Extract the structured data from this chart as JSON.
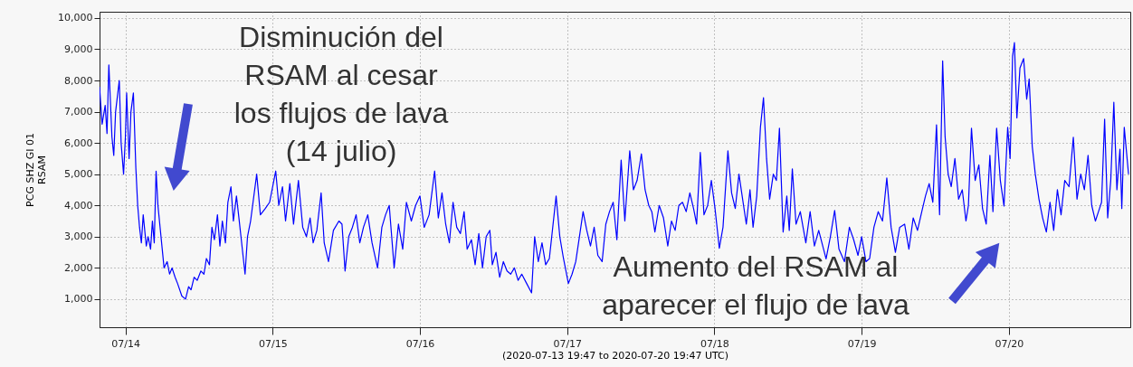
{
  "chart_data": {
    "type": "line",
    "ylabel": "PCG SHZ GI 01\nRSAM",
    "xlabel": "(2020-07-13 19:47 to 2020-07-20 19:47 UTC)",
    "xlim": [
      "2020-07-13T19:47",
      "2020-07-20T19:47"
    ],
    "xticks": [
      {
        "value": "2020-07-14",
        "label": "07/14"
      },
      {
        "value": "2020-07-15",
        "label": "07/15"
      },
      {
        "value": "2020-07-16",
        "label": "07/16"
      },
      {
        "value": "2020-07-17",
        "label": "07/17"
      },
      {
        "value": "2020-07-18",
        "label": "07/18"
      },
      {
        "value": "2020-07-19",
        "label": "07/19"
      },
      {
        "value": "2020-07-20",
        "label": "07/20"
      }
    ],
    "ylim": [
      100,
      10200
    ],
    "yticks": [
      {
        "value": 1000,
        "label": "1,000"
      },
      {
        "value": 2000,
        "label": "2,000"
      },
      {
        "value": 3000,
        "label": "3,000"
      },
      {
        "value": 4000,
        "label": "4,000"
      },
      {
        "value": 5000,
        "label": "5,000"
      },
      {
        "value": 6000,
        "label": "6,000"
      },
      {
        "value": 7000,
        "label": "7,000"
      },
      {
        "value": 8000,
        "label": "8,000"
      },
      {
        "value": 9000,
        "label": "9,000"
      },
      {
        "value": 10000,
        "label": "10,000"
      }
    ],
    "grid": true,
    "marker": "none",
    "line_style": "solid",
    "annotations": [
      "Disminución del\nRSAM al cesar\nlos flujos de lava\n(14 julio)",
      "Aumento del RSAM al\naparecer el flujo de lava"
    ],
    "series": [
      {
        "color": "#0000ff",
        "x": [
          "2020-07-13T19:47",
          "2020-07-13T20:12",
          "2020-07-13T20:42",
          "2020-07-13T21:00",
          "2020-07-13T21:18",
          "2020-07-13T21:48",
          "2020-07-13T22:06",
          "2020-07-13T22:24",
          "2020-07-13T23:00",
          "2020-07-13T23:18",
          "2020-07-13T23:42",
          "2020-07-14T00:00",
          "2020-07-14T00:12",
          "2020-07-14T00:36",
          "2020-07-14T00:54",
          "2020-07-14T01:18",
          "2020-07-14T01:42",
          "2020-07-14T02:00",
          "2020-07-14T02:18",
          "2020-07-14T02:36",
          "2020-07-14T02:54",
          "2020-07-14T03:24",
          "2020-07-14T03:42",
          "2020-07-14T04:06",
          "2020-07-14T04:24",
          "2020-07-14T04:42",
          "2020-07-14T05:00",
          "2020-07-14T05:18",
          "2020-07-14T05:36",
          "2020-07-14T06:00",
          "2020-07-14T06:18",
          "2020-07-14T06:48",
          "2020-07-14T07:12",
          "2020-07-14T07:36",
          "2020-07-14T08:06",
          "2020-07-14T08:30",
          "2020-07-14T09:12",
          "2020-07-14T09:48",
          "2020-07-14T10:18",
          "2020-07-14T10:42",
          "2020-07-14T11:12",
          "2020-07-14T11:42",
          "2020-07-14T12:18",
          "2020-07-14T12:48",
          "2020-07-14T13:12",
          "2020-07-14T13:42",
          "2020-07-14T14:06",
          "2020-07-14T14:30",
          "2020-07-14T15:00",
          "2020-07-14T15:24",
          "2020-07-14T15:48",
          "2020-07-14T16:18",
          "2020-07-14T16:42",
          "2020-07-14T17:12",
          "2020-07-14T17:36",
          "2020-07-14T18:06",
          "2020-07-14T18:30",
          "2020-07-14T19:30",
          "2020-07-14T19:54",
          "2020-07-14T20:24",
          "2020-07-14T21:24",
          "2020-07-14T22:00",
          "2020-07-14T22:48",
          "2020-07-14T23:30",
          "2020-07-15T00:30",
          "2020-07-15T01:00",
          "2020-07-15T01:36",
          "2020-07-15T02:06",
          "2020-07-15T02:48",
          "2020-07-15T03:24",
          "2020-07-15T04:12",
          "2020-07-15T04:54",
          "2020-07-15T05:30",
          "2020-07-15T06:06",
          "2020-07-15T06:36",
          "2020-07-15T07:12",
          "2020-07-15T07:54",
          "2020-07-15T08:24",
          "2020-07-15T09:06",
          "2020-07-15T09:54",
          "2020-07-15T10:48",
          "2020-07-15T11:18",
          "2020-07-15T11:48",
          "2020-07-15T12:24",
          "2020-07-15T13:00",
          "2020-07-15T13:36",
          "2020-07-15T14:12",
          "2020-07-15T14:48",
          "2020-07-15T15:30",
          "2020-07-15T16:12",
          "2020-07-15T17:06",
          "2020-07-15T17:48",
          "2020-07-15T18:24",
          "2020-07-15T19:00",
          "2020-07-15T19:48",
          "2020-07-15T20:30",
          "2020-07-15T21:12",
          "2020-07-15T21:48",
          "2020-07-15T22:36",
          "2020-07-15T23:18",
          "2020-07-16T00:00",
          "2020-07-16T00:42",
          "2020-07-16T01:30",
          "2020-07-16T02:24",
          "2020-07-16T03:00",
          "2020-07-16T03:36",
          "2020-07-16T04:12",
          "2020-07-16T04:48",
          "2020-07-16T05:24",
          "2020-07-16T06:00",
          "2020-07-16T06:36",
          "2020-07-16T07:12",
          "2020-07-16T07:42",
          "2020-07-16T08:24",
          "2020-07-16T09:00",
          "2020-07-16T09:36",
          "2020-07-16T10:12",
          "2020-07-16T10:48",
          "2020-07-16T11:24",
          "2020-07-16T11:48",
          "2020-07-16T12:24",
          "2020-07-16T13:00",
          "2020-07-16T13:36",
          "2020-07-16T14:12",
          "2020-07-16T14:48",
          "2020-07-16T15:24",
          "2020-07-16T16:00",
          "2020-07-16T16:36",
          "2020-07-16T17:24",
          "2020-07-16T18:12",
          "2020-07-16T18:42",
          "2020-07-16T19:18",
          "2020-07-16T19:54",
          "2020-07-16T20:30",
          "2020-07-16T21:06",
          "2020-07-16T22:12",
          "2020-07-16T22:48",
          "2020-07-16T23:24",
          "2020-07-17T00:12",
          "2020-07-17T00:48",
          "2020-07-17T01:24",
          "2020-07-17T02:00",
          "2020-07-17T02:36",
          "2020-07-17T03:12",
          "2020-07-17T03:48",
          "2020-07-17T04:24",
          "2020-07-17T05:00",
          "2020-07-17T05:42",
          "2020-07-17T06:18",
          "2020-07-17T06:54",
          "2020-07-17T07:30",
          "2020-07-17T08:06",
          "2020-07-17T08:48",
          "2020-07-17T09:24",
          "2020-07-17T10:12",
          "2020-07-17T10:48",
          "2020-07-17T11:24",
          "2020-07-17T12:06",
          "2020-07-17T12:42",
          "2020-07-17T13:18",
          "2020-07-17T13:48",
          "2020-07-17T14:18",
          "2020-07-17T15:00",
          "2020-07-17T15:42",
          "2020-07-17T16:24",
          "2020-07-17T17:00",
          "2020-07-17T17:36",
          "2020-07-17T18:12",
          "2020-07-17T18:48",
          "2020-07-17T19:24",
          "2020-07-17T20:00",
          "2020-07-17T20:36",
          "2020-07-17T21:06",
          "2020-07-17T21:42",
          "2020-07-17T22:18",
          "2020-07-17T22:54",
          "2020-07-17T23:30",
          "2020-07-18T00:06",
          "2020-07-18T00:48",
          "2020-07-18T01:24",
          "2020-07-18T02:12",
          "2020-07-18T02:48",
          "2020-07-18T03:24",
          "2020-07-18T04:00",
          "2020-07-18T04:36",
          "2020-07-18T05:12",
          "2020-07-18T05:48",
          "2020-07-18T06:18",
          "2020-07-18T06:54",
          "2020-07-18T07:30",
          "2020-07-18T08:00",
          "2020-07-18T08:30",
          "2020-07-18T09:00",
          "2020-07-18T09:36",
          "2020-07-18T10:06",
          "2020-07-18T10:36",
          "2020-07-18T11:12",
          "2020-07-18T11:48",
          "2020-07-18T12:12",
          "2020-07-18T12:42",
          "2020-07-18T13:18",
          "2020-07-18T14:00",
          "2020-07-18T14:54",
          "2020-07-18T15:36",
          "2020-07-18T16:18",
          "2020-07-18T17:00",
          "2020-07-18T18:12",
          "2020-07-18T18:54",
          "2020-07-18T19:36",
          "2020-07-18T20:18",
          "2020-07-18T21:12",
          "2020-07-18T22:00",
          "2020-07-18T22:42",
          "2020-07-18T23:24",
          "2020-07-19T00:00",
          "2020-07-19T00:42",
          "2020-07-19T01:18",
          "2020-07-19T02:00",
          "2020-07-19T02:42",
          "2020-07-19T03:24",
          "2020-07-19T04:06",
          "2020-07-19T04:48",
          "2020-07-19T05:30",
          "2020-07-19T06:12",
          "2020-07-19T07:00",
          "2020-07-19T07:42",
          "2020-07-19T08:24",
          "2020-07-19T09:06",
          "2020-07-19T09:48",
          "2020-07-19T10:24",
          "2020-07-19T11:00",
          "2020-07-19T11:36",
          "2020-07-19T12:12",
          "2020-07-19T12:42",
          "2020-07-19T13:12",
          "2020-07-19T13:36",
          "2020-07-19T14:06",
          "2020-07-19T14:36",
          "2020-07-19T15:12",
          "2020-07-19T15:48",
          "2020-07-19T16:24",
          "2020-07-19T17:00",
          "2020-07-19T17:24",
          "2020-07-19T17:54",
          "2020-07-19T18:30",
          "2020-07-19T19:06",
          "2020-07-19T19:42",
          "2020-07-19T20:18",
          "2020-07-19T20:54",
          "2020-07-19T21:24",
          "2020-07-19T22:00",
          "2020-07-19T22:36",
          "2020-07-19T23:12",
          "2020-07-19T23:48",
          "2020-07-20T00:12",
          "2020-07-20T00:36",
          "2020-07-20T00:54",
          "2020-07-20T01:18",
          "2020-07-20T01:48",
          "2020-07-20T02:24",
          "2020-07-20T02:54",
          "2020-07-20T03:18",
          "2020-07-20T03:48",
          "2020-07-20T04:18",
          "2020-07-20T04:54",
          "2020-07-20T05:30",
          "2020-07-20T06:06",
          "2020-07-20T06:42",
          "2020-07-20T07:18",
          "2020-07-20T07:54",
          "2020-07-20T08:30",
          "2020-07-20T09:06",
          "2020-07-20T09:48",
          "2020-07-20T10:30",
          "2020-07-20T11:06",
          "2020-07-20T11:42",
          "2020-07-20T12:18",
          "2020-07-20T12:54",
          "2020-07-20T13:30",
          "2020-07-20T14:06",
          "2020-07-20T14:36",
          "2020-07-20T15:06",
          "2020-07-20T15:36",
          "2020-07-20T16:06",
          "2020-07-20T16:36",
          "2020-07-20T17:06",
          "2020-07-20T17:36",
          "2020-07-20T18:06",
          "2020-07-20T18:24",
          "2020-07-20T18:48",
          "2020-07-20T19:30"
        ],
        "values": [
          7800,
          6600,
          7200,
          6300,
          8500,
          6200,
          5600,
          7000,
          8000,
          6000,
          5000,
          6200,
          7600,
          5500,
          7000,
          7600,
          5200,
          4000,
          3300,
          2800,
          3700,
          2700,
          3000,
          2600,
          3500,
          2800,
          5100,
          4000,
          3400,
          2600,
          2000,
          2200,
          1800,
          2000,
          1700,
          1500,
          1100,
          1000,
          1400,
          1300,
          1700,
          1600,
          1900,
          1800,
          2300,
          2100,
          3300,
          2900,
          3700,
          2700,
          3500,
          2800,
          4100,
          4600,
          3500,
          4300,
          3600,
          1800,
          3000,
          3500,
          5000,
          3700,
          3900,
          4100,
          5100,
          4000,
          4600,
          3500,
          4700,
          3400,
          4800,
          3300,
          3000,
          3600,
          2800,
          3200,
          4400,
          2800,
          2200,
          3200,
          3500,
          3400,
          1900,
          3000,
          3300,
          3700,
          2800,
          3300,
          3700,
          2800,
          2000,
          3300,
          3700,
          4000,
          2000,
          3400,
          2600,
          4100,
          3500,
          4000,
          4300,
          3300,
          3700,
          5100,
          3600,
          4400,
          3400,
          2800,
          4100,
          3300,
          3100,
          3800,
          2600,
          2900,
          2100,
          3100,
          2000,
          3000,
          3200,
          2100,
          2500,
          1700,
          2200,
          1900,
          1800,
          2000,
          1600,
          1800,
          1500,
          1200,
          3000,
          2200,
          2800,
          2100,
          2300,
          4300,
          3000,
          2300,
          1500,
          1800,
          2200,
          3000,
          3800,
          3200,
          2700,
          3300,
          2400,
          2200,
          3400,
          3800,
          4100,
          2900,
          5450,
          3500,
          5750,
          4500,
          4800,
          5650,
          4500,
          4000,
          3800,
          3150,
          4000,
          3600,
          2700,
          3500,
          3200,
          4000,
          4100,
          3800,
          4400,
          3900,
          3400,
          5700,
          3700,
          4000,
          4800,
          3900,
          2630,
          3300,
          5750,
          4400,
          3900,
          5000,
          4200,
          3400,
          4500,
          3300,
          4300,
          6500,
          7450,
          5500,
          4200,
          5000,
          4800,
          6470,
          3150,
          4300,
          3200,
          5170,
          3400,
          3800,
          2800,
          3800,
          2700,
          3200,
          2290,
          3000,
          3840,
          2600,
          2200,
          3300,
          2900,
          2400,
          3000,
          2200,
          2300,
          3300,
          3800,
          3500,
          4880,
          3300,
          2500,
          3300,
          3400,
          2600,
          3600,
          3200,
          3800,
          4300,
          4700,
          4100,
          6580,
          3700,
          8630,
          6200,
          5000,
          4600,
          5500,
          4200,
          4500,
          3500,
          4000,
          6470,
          4800,
          5300,
          3900,
          3400,
          5600,
          3800,
          6470,
          4800,
          3980,
          6500,
          5500,
          8780,
          9210,
          6800,
          8400,
          8700,
          7400,
          8050,
          5900,
          5000,
          4200,
          3600,
          3150,
          4100,
          3200,
          4500,
          3700,
          4800,
          4600,
          6180,
          4200,
          5000,
          4500,
          5600,
          4000,
          3500,
          3800,
          4100,
          6760,
          3600,
          4800,
          7300,
          4500,
          5800,
          3900,
          6500,
          5000
        ]
      }
    ]
  }
}
